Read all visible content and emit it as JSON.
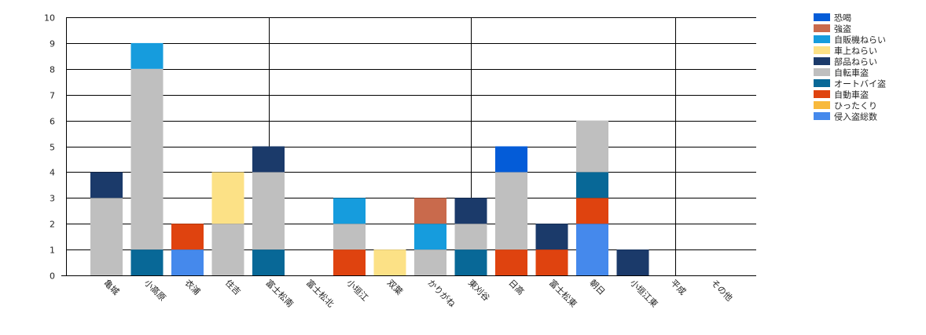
{
  "chart_data": {
    "type": "bar",
    "stacked": true,
    "categories": [
      "亀城",
      "小高原",
      "衣浦",
      "住吉",
      "富士松南",
      "富士松北",
      "小垣江",
      "双葉",
      "かりがね",
      "東刈谷",
      "日高",
      "富士松東",
      "朝日",
      "小垣江東",
      "平成",
      "その他"
    ],
    "series": [
      {
        "name": "侵入盗総数",
        "color": "#4589EC",
        "values": [
          0,
          0,
          1,
          0,
          0,
          0,
          0,
          0,
          0,
          0,
          0,
          0,
          2,
          0,
          0,
          0
        ]
      },
      {
        "name": "ひったくり",
        "color": "#F8B93C",
        "values": [
          0,
          0,
          0,
          0,
          0,
          0,
          0,
          0,
          0,
          0,
          0,
          0,
          0,
          0,
          0,
          0
        ]
      },
      {
        "name": "自動車盗",
        "color": "#DF430F",
        "values": [
          0,
          0,
          1,
          0,
          0,
          0,
          1,
          0,
          0,
          0,
          1,
          1,
          1,
          0,
          0,
          0
        ]
      },
      {
        "name": "オートバイ盗",
        "color": "#086897",
        "values": [
          0,
          1,
          0,
          0,
          1,
          0,
          0,
          0,
          0,
          1,
          0,
          0,
          1,
          0,
          0,
          0
        ]
      },
      {
        "name": "自転車盗",
        "color": "#BFBFBF",
        "values": [
          3,
          7,
          0,
          2,
          3,
          0,
          1,
          0,
          1,
          1,
          3,
          0,
          2,
          0,
          0,
          0
        ]
      },
      {
        "name": "部品ねらい",
        "color": "#1B3A6A",
        "values": [
          1,
          0,
          0,
          0,
          1,
          0,
          0,
          0,
          0,
          1,
          0,
          1,
          0,
          1,
          0,
          0
        ]
      },
      {
        "name": "車上ねらい",
        "color": "#FCE186",
        "values": [
          0,
          0,
          0,
          2,
          0,
          0,
          0,
          1,
          0,
          0,
          0,
          0,
          0,
          0,
          0,
          0
        ]
      },
      {
        "name": "自販機ねらい",
        "color": "#169CDD",
        "values": [
          0,
          1,
          0,
          0,
          0,
          0,
          1,
          0,
          1,
          0,
          0,
          0,
          0,
          0,
          0,
          0
        ]
      },
      {
        "name": "強盗",
        "color": "#C96A4C",
        "values": [
          0,
          0,
          0,
          0,
          0,
          0,
          0,
          0,
          1,
          0,
          0,
          0,
          0,
          0,
          0,
          0
        ]
      },
      {
        "name": "恐喝",
        "color": "#045CD8",
        "values": [
          0,
          0,
          0,
          0,
          0,
          0,
          0,
          0,
          0,
          0,
          1,
          0,
          0,
          0,
          0,
          0
        ]
      }
    ],
    "legend_order": [
      "恐喝",
      "強盗",
      "自販機ねらい",
      "車上ねらい",
      "部品ねらい",
      "自転車盗",
      "オートバイ盗",
      "自動車盗",
      "ひったくり",
      "侵入盗総数"
    ],
    "ylim": [
      0,
      10
    ],
    "yticks": [
      0,
      1,
      2,
      3,
      4,
      5,
      6,
      7,
      8,
      9,
      10
    ],
    "grid": true,
    "legend_position": "top-right",
    "title": "",
    "xlabel": "",
    "ylabel": ""
  }
}
